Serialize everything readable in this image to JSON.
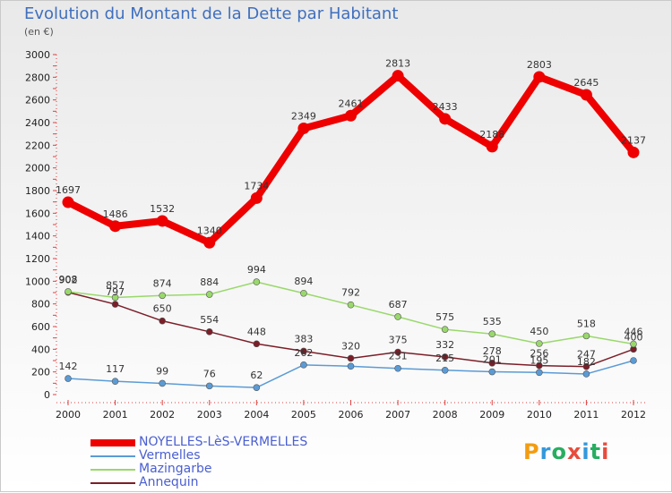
{
  "header": {
    "title": "Evolution du Montant de la Dette par Habitant",
    "unit": "(en €)"
  },
  "logo": {
    "text": "Proxiti",
    "letter_colors": [
      "#f39c12",
      "#3498db",
      "#27ae60",
      "#e74c3c",
      "#3498db",
      "#27ae60",
      "#e74c3c"
    ]
  },
  "chart_data": {
    "type": "line",
    "title": "Evolution du Montant de la Dette par Habitant",
    "subtitle": "(en €)",
    "xlabel": "",
    "ylabel": "",
    "x": [
      "2000",
      "2001",
      "2002",
      "2003",
      "2004",
      "2005",
      "2006",
      "2007",
      "2008",
      "2009",
      "2010",
      "2011",
      "2012"
    ],
    "ylim": [
      0,
      3000
    ],
    "yticks": [
      0,
      200,
      400,
      600,
      800,
      1000,
      1200,
      1400,
      1600,
      1800,
      2000,
      2200,
      2400,
      2600,
      2800,
      3000
    ],
    "grid": false,
    "legend_position": "bottom-left",
    "series": [
      {
        "name": "NOYELLES-LèS-VERMELLES",
        "color": "#ee0000",
        "values": [
          1697,
          1486,
          1532,
          1340,
          1734,
          2349,
          2461,
          2813,
          2433,
          2188,
          2803,
          2645,
          2137
        ]
      },
      {
        "name": "Vermelles",
        "color": "#5b9bd5",
        "values": [
          142,
          117,
          99,
          76,
          62,
          262,
          250,
          231,
          215,
          201,
          195,
          182,
          300
        ]
      },
      {
        "name": "Mazingarbe",
        "color": "#99d86b",
        "values": [
          908,
          857,
          874,
          884,
          994,
          894,
          792,
          687,
          575,
          535,
          450,
          518,
          446
        ]
      },
      {
        "name": "Annequin",
        "color": "#7b1e28",
        "values": [
          902,
          797,
          650,
          554,
          448,
          383,
          320,
          375,
          332,
          278,
          256,
          247,
          400
        ]
      }
    ],
    "data_labels": [
      [
        "1697",
        "1486",
        "1532",
        "1340",
        "1734",
        "2349",
        "2461",
        "2813",
        "2433",
        "2188",
        "2803",
        "2645",
        "2137"
      ],
      [
        "142",
        "117",
        "99",
        "76",
        "62",
        "262",
        "",
        "231",
        "215",
        "201",
        "195",
        "182",
        ""
      ],
      [
        "908",
        "857",
        "874",
        "884",
        "994",
        "894",
        "792",
        "687",
        "575",
        "535",
        "450",
        "518",
        "446"
      ],
      [
        "902",
        "797",
        "650",
        "554",
        "448",
        "383",
        "320",
        "375",
        "332",
        "278",
        "256",
        "247",
        "400"
      ]
    ]
  }
}
